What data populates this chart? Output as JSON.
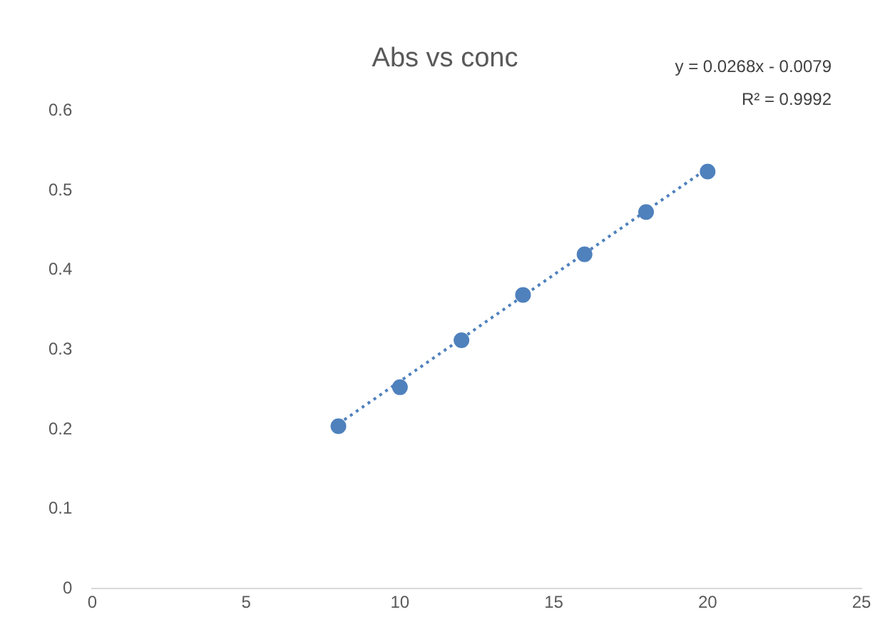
{
  "chart_data": {
    "type": "scatter",
    "title": "Abs vs conc",
    "x": [
      8,
      10,
      12,
      14,
      16,
      18,
      20
    ],
    "series": [
      {
        "color": "#4f81bd",
        "values": [
          0.204,
          0.253,
          0.312,
          0.369,
          0.42,
          0.473,
          0.524
        ]
      },
      {
        "type": "line",
        "color": "#4f81bd",
        "x": [
          8,
          20
        ],
        "values": [
          0.207,
          0.528
        ],
        "line_style": "dotted",
        "marker": "none"
      }
    ],
    "xlim": [
      0,
      25
    ],
    "xticks": [
      0,
      5,
      10,
      15,
      20,
      25
    ],
    "ylim": [
      0,
      0.6
    ],
    "yticks": [
      0,
      0.1,
      0.2,
      0.3,
      0.4,
      0.5,
      0.6
    ],
    "grid": false,
    "legend": false,
    "marker": "circle",
    "annotations": [
      "y = 0.0268x - 0.0079",
      "R² = 0.9992"
    ]
  }
}
